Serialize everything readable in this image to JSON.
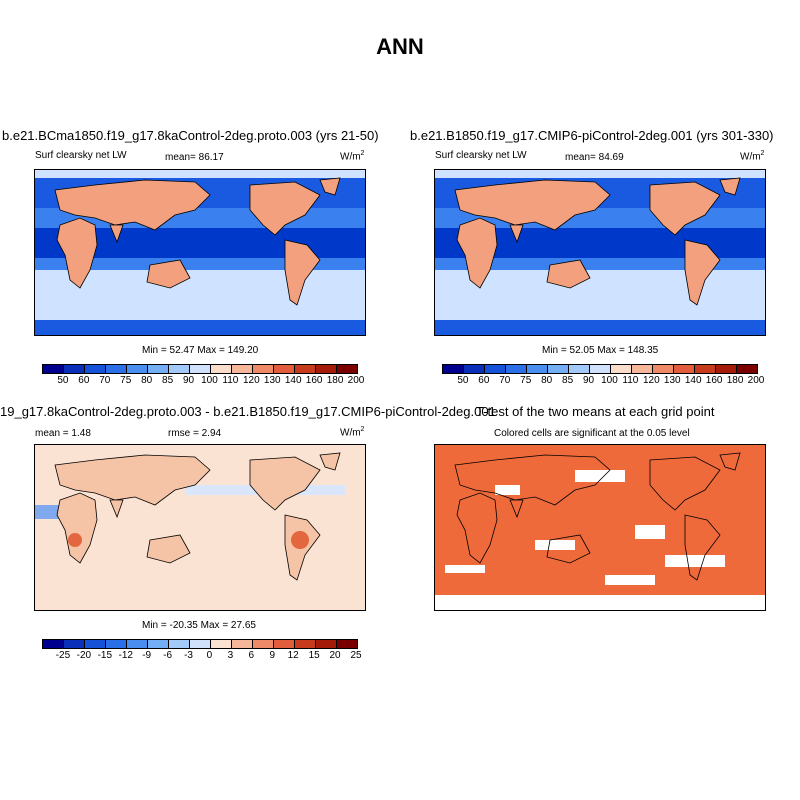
{
  "title": "ANN",
  "panels": {
    "p1": {
      "case": "b.e21.BCma1850.f19_g17.8kaControl-2deg.proto.003 (yrs 21-50)",
      "variable": "Surf clearsky net LW",
      "mean_label": "mean=  86.17",
      "units": "W/m",
      "units_exp": "2",
      "minmax": "Min =  52.47 Max = 149.20"
    },
    "p2": {
      "case": "b.e21.B1850.f19_g17.CMIP6-piControl-2deg.001 (yrs 301-330)",
      "variable": "Surf clearsky net LW",
      "mean_label": "mean=  84.69",
      "units": "W/m",
      "units_exp": "2",
      "minmax": "Min =  52.05 Max = 148.35"
    },
    "p3": {
      "case": "19_g17.8kaControl-2deg.proto.003 - b.e21.B1850.f19_g17.CMIP6-piControl-2deg.001",
      "mean_label": "mean =   1.48",
      "rmse_label": "rmse =   2.94",
      "units": "W/m",
      "units_exp": "2",
      "minmax": "Min = -20.35 Max =  27.65"
    },
    "p4": {
      "case": "T-test of the two means at each grid point",
      "subtitle": "Colored cells are significant at the 0.05 level"
    }
  },
  "colorbar_abs": {
    "labels": [
      "50",
      "60",
      "70",
      "75",
      "80",
      "85",
      "90",
      "100",
      "110",
      "120",
      "130",
      "140",
      "160",
      "180",
      "200"
    ],
    "colors": [
      "#00008f",
      "#0a2fb8",
      "#1552d8",
      "#2a6fe8",
      "#4a8ff0",
      "#74aef5",
      "#a3c9f8",
      "#d0e2fb",
      "#fbdcc8",
      "#f6b69a",
      "#ef8a69",
      "#e25d3c",
      "#c83a1e",
      "#a51b0a",
      "#7a0000"
    ]
  },
  "colorbar_diff": {
    "labels": [
      "-25",
      "-20",
      "-15",
      "-12",
      "-9",
      "-6",
      "-3",
      "0",
      "3",
      "6",
      "9",
      "12",
      "15",
      "20",
      "25"
    ],
    "colors": [
      "#00008f",
      "#0a2fb8",
      "#1552d8",
      "#2a6fe8",
      "#4a8ff0",
      "#74aef5",
      "#a3c9f8",
      "#d0e2fb",
      "#fbe3d3",
      "#f6b69a",
      "#ef8a69",
      "#e25d3c",
      "#c83a1e",
      "#a51b0a",
      "#7a0000"
    ]
  },
  "map_colors": {
    "ocean_warm": "#0039c9",
    "ocean_mid": "#3a80ee",
    "ocean_cool": "#cfe2ff",
    "land_warm": "#f2a07d",
    "land_hot": "#e2663e",
    "polar": "#1a5ae0",
    "diff_bg": "#fbe3d3",
    "ttest_fill": "#ef6a3b"
  }
}
